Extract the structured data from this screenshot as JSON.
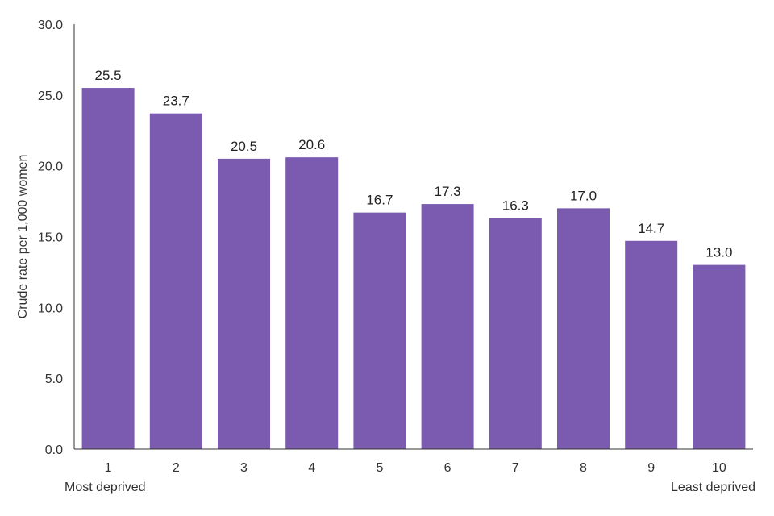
{
  "chart_data": {
    "type": "bar",
    "categories": [
      "1",
      "2",
      "3",
      "4",
      "5",
      "6",
      "7",
      "8",
      "9",
      "10"
    ],
    "values": [
      25.5,
      23.7,
      20.5,
      20.6,
      16.7,
      17.3,
      16.3,
      17.0,
      14.7,
      13.0
    ],
    "value_labels": [
      "25.5",
      "23.7",
      "20.5",
      "20.6",
      "16.7",
      "17.3",
      "16.3",
      "17.0",
      "14.7",
      "13.0"
    ],
    "title": "",
    "xlabel": "",
    "ylabel": "Crude rate per 1,000 women",
    "ylim": [
      0,
      30
    ],
    "yticks": [
      "0.0",
      "5.0",
      "10.0",
      "15.0",
      "20.0",
      "25.0",
      "30.0"
    ],
    "x_start_annotation": "Most deprived",
    "x_end_annotation": "Least deprived",
    "bar_color": "#7b5bb0",
    "grid": false,
    "legend": "none"
  }
}
